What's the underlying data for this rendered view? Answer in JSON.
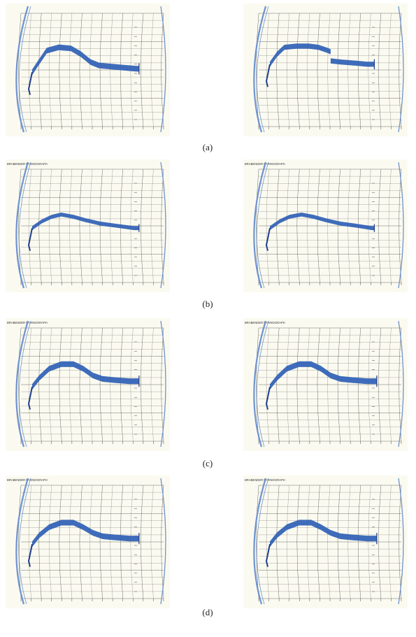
{
  "colors": {
    "paper": "#fbfaf0",
    "grid": "#4b4b4b",
    "trace": "#2f5fb5",
    "trace_dark": "#1f3f8a",
    "rail": "#6f93cf"
  },
  "chart_header": "BRABENDER FARINOGRAPH",
  "row_labels": [
    "(a)",
    "(b)",
    "(c)",
    "(d)"
  ],
  "charts": [
    {
      "row": "(a)",
      "side": "left",
      "header_visible": false,
      "curve": [
        [
          0.0,
          0.52
        ],
        [
          0.05,
          0.44
        ],
        [
          0.12,
          0.33
        ],
        [
          0.22,
          0.3
        ],
        [
          0.32,
          0.31
        ],
        [
          0.4,
          0.36
        ],
        [
          0.48,
          0.43
        ],
        [
          0.55,
          0.46
        ],
        [
          0.65,
          0.47
        ],
        [
          0.75,
          0.48
        ],
        [
          0.86,
          0.49
        ],
        [
          0.88,
          0.49
        ]
      ],
      "thick": 0.05,
      "step": null
    },
    {
      "row": "(a)",
      "side": "right",
      "header_visible": false,
      "curve": [
        [
          0.0,
          0.45
        ],
        [
          0.06,
          0.36
        ],
        [
          0.12,
          0.3
        ],
        [
          0.22,
          0.29
        ],
        [
          0.32,
          0.29
        ],
        [
          0.4,
          0.3
        ],
        [
          0.48,
          0.33
        ],
        [
          0.5,
          0.34
        ],
        [
          0.5,
          0.42
        ],
        [
          0.58,
          0.43
        ],
        [
          0.7,
          0.44
        ],
        [
          0.8,
          0.45
        ],
        [
          0.86,
          0.45
        ]
      ],
      "thick": 0.045,
      "step": 0.5
    },
    {
      "row": "(b)",
      "side": "left",
      "header_visible": true,
      "curve": [
        [
          0.0,
          0.52
        ],
        [
          0.08,
          0.46
        ],
        [
          0.16,
          0.42
        ],
        [
          0.24,
          0.4
        ],
        [
          0.34,
          0.42
        ],
        [
          0.44,
          0.45
        ],
        [
          0.56,
          0.48
        ],
        [
          0.7,
          0.5
        ],
        [
          0.84,
          0.52
        ],
        [
          0.88,
          0.52
        ]
      ],
      "thick": 0.035,
      "step": null
    },
    {
      "row": "(b)",
      "side": "right",
      "header_visible": true,
      "curve": [
        [
          0.0,
          0.52
        ],
        [
          0.08,
          0.46
        ],
        [
          0.16,
          0.42
        ],
        [
          0.26,
          0.4
        ],
        [
          0.36,
          0.42
        ],
        [
          0.46,
          0.45
        ],
        [
          0.58,
          0.48
        ],
        [
          0.72,
          0.5
        ],
        [
          0.84,
          0.52
        ],
        [
          0.86,
          0.52
        ]
      ],
      "thick": 0.035,
      "step": null
    },
    {
      "row": "(c)",
      "side": "left",
      "header_visible": true,
      "curve": [
        [
          0.0,
          0.52
        ],
        [
          0.06,
          0.44
        ],
        [
          0.14,
          0.36
        ],
        [
          0.24,
          0.32
        ],
        [
          0.34,
          0.32
        ],
        [
          0.42,
          0.36
        ],
        [
          0.5,
          0.42
        ],
        [
          0.58,
          0.45
        ],
        [
          0.68,
          0.46
        ],
        [
          0.8,
          0.47
        ],
        [
          0.88,
          0.47
        ]
      ],
      "thick": 0.05,
      "step": null
    },
    {
      "row": "(c)",
      "side": "right",
      "header_visible": true,
      "curve": [
        [
          0.0,
          0.52
        ],
        [
          0.06,
          0.44
        ],
        [
          0.14,
          0.36
        ],
        [
          0.24,
          0.32
        ],
        [
          0.34,
          0.32
        ],
        [
          0.42,
          0.36
        ],
        [
          0.5,
          0.42
        ],
        [
          0.58,
          0.45
        ],
        [
          0.68,
          0.46
        ],
        [
          0.8,
          0.47
        ],
        [
          0.88,
          0.47
        ]
      ],
      "thick": 0.05,
      "step": null
    },
    {
      "row": "(d)",
      "side": "left",
      "header_visible": true,
      "curve": [
        [
          0.0,
          0.52
        ],
        [
          0.06,
          0.44
        ],
        [
          0.14,
          0.37
        ],
        [
          0.24,
          0.33
        ],
        [
          0.34,
          0.33
        ],
        [
          0.42,
          0.37
        ],
        [
          0.5,
          0.42
        ],
        [
          0.58,
          0.45
        ],
        [
          0.68,
          0.46
        ],
        [
          0.8,
          0.47
        ],
        [
          0.88,
          0.47
        ]
      ],
      "thick": 0.05,
      "step": null
    },
    {
      "row": "(d)",
      "side": "right",
      "header_visible": true,
      "curve": [
        [
          0.0,
          0.52
        ],
        [
          0.06,
          0.44
        ],
        [
          0.14,
          0.37
        ],
        [
          0.24,
          0.33
        ],
        [
          0.34,
          0.33
        ],
        [
          0.42,
          0.37
        ],
        [
          0.5,
          0.42
        ],
        [
          0.58,
          0.45
        ],
        [
          0.68,
          0.46
        ],
        [
          0.8,
          0.47
        ],
        [
          0.88,
          0.47
        ]
      ],
      "thick": 0.05,
      "step": null
    }
  ]
}
